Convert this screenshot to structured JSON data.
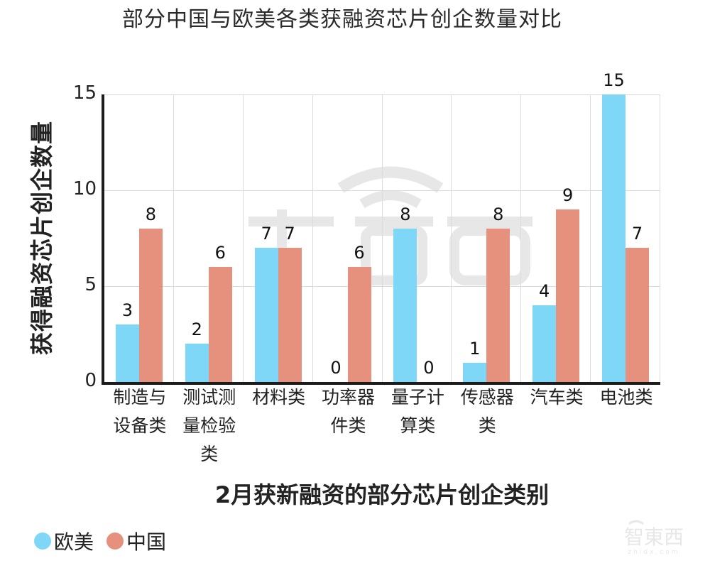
{
  "title": "部分中国与欧美各类获融资芯片创企数量对比",
  "yaxis": {
    "label": "获得融资芯片创企数量",
    "ticks": [
      "0",
      "5",
      "10",
      "15"
    ]
  },
  "xaxis": {
    "label": "2月获新融资的部分芯片创企类别"
  },
  "categories": [
    {
      "lines": [
        "制造与",
        "设备类"
      ],
      "eu": "3",
      "cn": "8"
    },
    {
      "lines": [
        "测试测",
        "量检验",
        "类"
      ],
      "eu": "2",
      "cn": "6"
    },
    {
      "lines": [
        "材料类"
      ],
      "eu": "7",
      "cn": "7"
    },
    {
      "lines": [
        "功率器",
        "件类"
      ],
      "eu": "0",
      "cn": "6"
    },
    {
      "lines": [
        "量子计",
        "算类"
      ],
      "eu": "8",
      "cn": "0"
    },
    {
      "lines": [
        "传感器",
        "类"
      ],
      "eu": "1",
      "cn": "8"
    },
    {
      "lines": [
        "汽车类"
      ],
      "eu": "4",
      "cn": "9"
    },
    {
      "lines": [
        "电池类"
      ],
      "eu": "15",
      "cn": "7"
    }
  ],
  "legend": [
    {
      "label": "欧美",
      "color": "#7fd7f7"
    },
    {
      "label": "中国",
      "color": "#e6917e"
    }
  ],
  "watermark": "智东西",
  "logo": {
    "text": "智東西",
    "subtext": "zhidx.com"
  },
  "chart_data": {
    "type": "bar",
    "title": "部分中国与欧美各类获融资芯片创企数量对比",
    "xlabel": "2月获新融资的部分芯片创企类别",
    "ylabel": "获得融资芯片创企数量",
    "categories": [
      "制造与设备类",
      "测试测量检验类",
      "材料类",
      "功率器件类",
      "量子计算类",
      "传感器类",
      "汽车类",
      "电池类"
    ],
    "series": [
      {
        "name": "欧美",
        "color": "#7fd7f7",
        "values": [
          3,
          2,
          7,
          0,
          8,
          1,
          4,
          15
        ]
      },
      {
        "name": "中国",
        "color": "#e6917e",
        "values": [
          8,
          6,
          7,
          6,
          0,
          8,
          9,
          7
        ]
      }
    ],
    "ylim": [
      0,
      15
    ],
    "yticks": [
      0,
      5,
      10,
      15
    ],
    "grid": true,
    "data_labels": true,
    "legend_position": "bottom-left"
  }
}
